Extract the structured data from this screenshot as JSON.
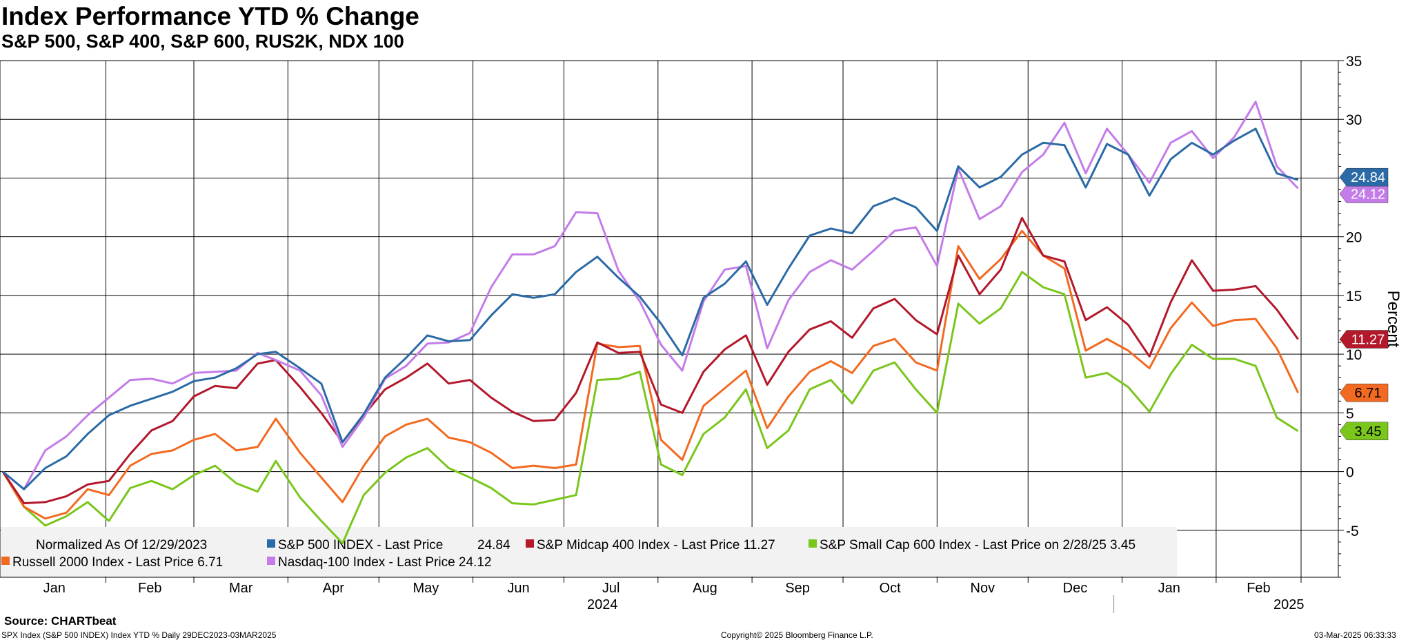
{
  "header": {
    "title": "Index Performance YTD % Change",
    "subtitle": "S&P 500, S&P 400, S&P 600, RUS2K, NDX 100"
  },
  "footer": {
    "source": "Source: CHARTbeat",
    "ticker_info": "SPX Index (S&P 500 INDEX) Index YTD %  Daily 29DEC2023-03MAR2025",
    "copyright": "Copyright© 2025 Bloomberg Finance L.P.",
    "timestamp": "03-Mar-2025 06:33:33"
  },
  "legend": {
    "note": "Normalized As Of 12/29/2023"
  },
  "chart_data": {
    "type": "line",
    "ylabel": "Percent",
    "ylim": [
      -9,
      35
    ],
    "yticks": [
      -5,
      0,
      5,
      10,
      15,
      20,
      25,
      30,
      35
    ],
    "grid": true,
    "legend_position": "bottom-left",
    "month_labels": [
      "Jan",
      "Feb",
      "Mar",
      "Apr",
      "May",
      "Jun",
      "Jul",
      "Aug",
      "Sep",
      "Oct",
      "Nov",
      "Dec",
      "Jan",
      "Feb"
    ],
    "year_labels": [
      "2024",
      "2025"
    ],
    "x": [
      "2023-12-29",
      "2024-01-05",
      "2024-01-12",
      "2024-01-19",
      "2024-01-26",
      "2024-02-02",
      "2024-02-09",
      "2024-02-16",
      "2024-02-23",
      "2024-03-01",
      "2024-03-08",
      "2024-03-15",
      "2024-03-22",
      "2024-03-28",
      "2024-04-05",
      "2024-04-12",
      "2024-04-19",
      "2024-04-26",
      "2024-05-03",
      "2024-05-10",
      "2024-05-17",
      "2024-05-24",
      "2024-05-31",
      "2024-06-07",
      "2024-06-14",
      "2024-06-21",
      "2024-06-28",
      "2024-07-05",
      "2024-07-12",
      "2024-07-19",
      "2024-07-26",
      "2024-08-02",
      "2024-08-09",
      "2024-08-16",
      "2024-08-23",
      "2024-08-30",
      "2024-09-06",
      "2024-09-13",
      "2024-09-20",
      "2024-09-27",
      "2024-10-04",
      "2024-10-11",
      "2024-10-18",
      "2024-10-25",
      "2024-11-01",
      "2024-11-08",
      "2024-11-15",
      "2024-11-22",
      "2024-11-29",
      "2024-12-06",
      "2024-12-13",
      "2024-12-20",
      "2024-12-27",
      "2025-01-03",
      "2025-01-10",
      "2025-01-17",
      "2025-01-24",
      "2025-01-31",
      "2025-02-07",
      "2025-02-14",
      "2025-02-21",
      "2025-02-28"
    ],
    "series": [
      {
        "name": "S&P 500 INDEX - Last Price",
        "color": "#2a6aa6",
        "last": 24.84,
        "last_label": "24.84",
        "values": [
          0,
          -1.5,
          0.3,
          1.3,
          3.2,
          4.8,
          5.6,
          6.2,
          6.8,
          7.7,
          8.0,
          8.8,
          10.0,
          10.2,
          8.8,
          7.5,
          2.5,
          4.9,
          8.0,
          9.7,
          11.6,
          11.1,
          11.2,
          13.3,
          15.1,
          14.8,
          15.1,
          17.0,
          18.3,
          16.5,
          14.9,
          12.6,
          9.9,
          14.8,
          16.0,
          17.9,
          14.2,
          17.3,
          20.1,
          20.7,
          20.3,
          22.6,
          23.3,
          22.5,
          20.5,
          26.0,
          24.2,
          25.1,
          27.0,
          28.0,
          27.8,
          24.2,
          27.9,
          27.0,
          23.5,
          26.6,
          28.0,
          27.0,
          28.2,
          29.2,
          25.4,
          24.84
        ]
      },
      {
        "name": "S&P Midcap 400 Index - Last Price",
        "color": "#b3182b",
        "last": 11.27,
        "last_label": "11.27",
        "values": [
          0,
          -2.7,
          -2.6,
          -2.1,
          -1.1,
          -0.8,
          1.5,
          3.5,
          4.3,
          6.4,
          7.3,
          7.1,
          9.2,
          9.5,
          7.2,
          5.0,
          2.5,
          4.8,
          7.0,
          8.0,
          9.2,
          7.5,
          7.8,
          6.3,
          5.1,
          4.3,
          4.4,
          6.7,
          11.0,
          10.1,
          10.2,
          5.7,
          5.0,
          8.5,
          10.4,
          11.6,
          7.4,
          10.2,
          12.1,
          12.8,
          11.4,
          13.9,
          14.7,
          12.9,
          11.7,
          18.4,
          15.1,
          17.2,
          21.6,
          18.4,
          17.9,
          12.9,
          14.0,
          12.5,
          9.8,
          14.4,
          18.0,
          15.4,
          15.5,
          15.8,
          13.8,
          11.27
        ]
      },
      {
        "name": "S&P Small Cap 600 Index - Last Price on 2/28/25",
        "color": "#7ac61c",
        "last": 3.45,
        "last_label": "3.45",
        "values": [
          0,
          -3.0,
          -4.6,
          -3.8,
          -2.6,
          -4.2,
          -1.4,
          -0.8,
          -1.5,
          -0.3,
          0.5,
          -1.0,
          -1.7,
          0.9,
          -2.2,
          -4.2,
          -6.1,
          -2.0,
          -0.1,
          1.2,
          2.0,
          0.3,
          -0.5,
          -1.4,
          -2.7,
          -2.8,
          -2.4,
          -2.0,
          7.8,
          7.9,
          8.5,
          0.6,
          -0.3,
          3.2,
          4.6,
          7.0,
          2.0,
          3.5,
          7.0,
          7.8,
          5.8,
          8.6,
          9.3,
          7.0,
          5.0,
          14.3,
          12.6,
          13.9,
          17.0,
          15.7,
          15.1,
          8.0,
          8.4,
          7.2,
          5.1,
          8.3,
          10.8,
          9.6,
          9.6,
          9.0,
          4.6,
          3.45
        ]
      },
      {
        "name": "Russell 2000 Index - Last Price",
        "color": "#f26a21",
        "last": 6.71,
        "last_label": "6.71",
        "values": [
          0,
          -3.0,
          -4.0,
          -3.5,
          -1.5,
          -2.0,
          0.5,
          1.5,
          1.8,
          2.7,
          3.2,
          1.8,
          2.1,
          4.5,
          1.6,
          -0.5,
          -2.6,
          0.5,
          3.0,
          4.0,
          4.5,
          2.9,
          2.5,
          1.6,
          0.3,
          0.5,
          0.3,
          0.6,
          10.9,
          10.6,
          10.7,
          2.7,
          1.0,
          5.6,
          7.1,
          8.6,
          3.7,
          6.4,
          8.5,
          9.4,
          8.4,
          10.7,
          11.3,
          9.3,
          8.6,
          19.2,
          16.4,
          18.1,
          20.5,
          18.4,
          17.3,
          10.3,
          11.3,
          10.3,
          8.8,
          12.2,
          14.4,
          12.4,
          12.9,
          13.0,
          10.5,
          6.71
        ]
      },
      {
        "name": "Nasdaq-100 Index - Last Price",
        "color": "#c37ce8",
        "last": 24.12,
        "last_label": "24.12",
        "values": [
          0,
          -1.5,
          1.8,
          3.0,
          4.8,
          6.3,
          7.8,
          7.9,
          7.5,
          8.4,
          8.5,
          8.6,
          10.1,
          9.5,
          8.6,
          6.5,
          2.1,
          4.6,
          7.9,
          9.0,
          10.9,
          11.0,
          11.8,
          15.7,
          18.5,
          18.5,
          19.2,
          22.1,
          22.0,
          17.1,
          14.5,
          10.8,
          8.6,
          14.5,
          17.2,
          17.5,
          10.5,
          14.6,
          17.0,
          18.0,
          17.2,
          18.8,
          20.5,
          20.8,
          17.5,
          25.8,
          21.5,
          22.6,
          25.5,
          27.0,
          29.7,
          25.4,
          29.2,
          27.0,
          24.6,
          28.0,
          29.0,
          26.7,
          28.5,
          31.5,
          26.0,
          24.12
        ]
      }
    ]
  },
  "legend_items": [
    {
      "label": "S&P 500 INDEX - Last Price",
      "value": "24.84"
    },
    {
      "label": "S&P Midcap 400 Index - Last Price",
      "value": "11.27"
    },
    {
      "label": "S&P Small Cap 600 Index - Last Price on 2/28/25",
      "value": "3.45"
    },
    {
      "label": "Russell 2000 Index - Last Price",
      "value": "6.71"
    },
    {
      "label": "Nasdaq-100 Index - Last Price",
      "value": "24.12"
    }
  ]
}
